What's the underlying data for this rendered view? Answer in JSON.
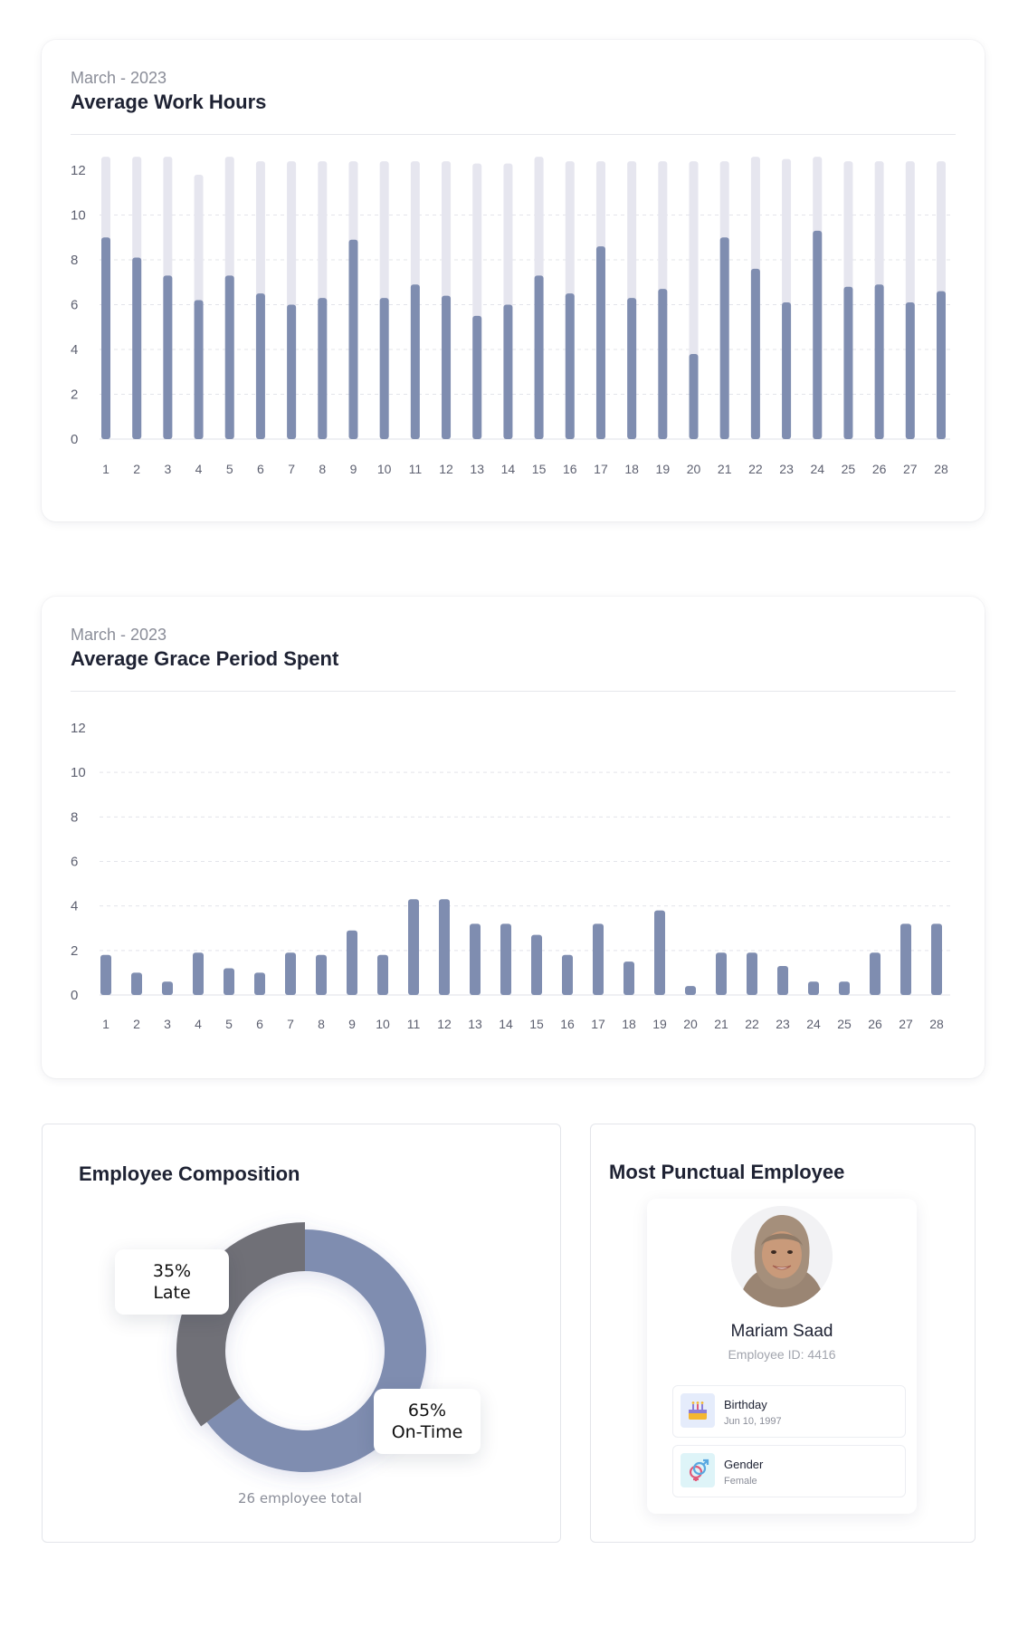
{
  "work_hours_card": {
    "subtitle": "March - 2023",
    "title": "Average Work Hours"
  },
  "grace_card": {
    "subtitle": "March - 2023",
    "title": "Average Grace Period Spent"
  },
  "composition": {
    "title": "Employee Composition",
    "late_percent": "35%",
    "late_label": "Late",
    "ontime_percent": "65%",
    "ontime_label": "On-Time",
    "footer": "26 employee total"
  },
  "punctual": {
    "title": "Most Punctual Employee",
    "name": "Mariam Saad",
    "employee_id": "Employee ID: 4416",
    "birthday_label": "Birthday",
    "birthday_value": "Jun 10, 1997",
    "gender_label": "Gender",
    "gender_value": "Female"
  },
  "colors": {
    "bar": "#7f8db0",
    "bar_track": "#e6e6ef",
    "late": "#6f7077",
    "ontime": "#7f8db0"
  },
  "chart_data": [
    {
      "type": "bar",
      "title": "Average Work Hours",
      "ylim": [
        0,
        12
      ],
      "yticks": [
        0,
        2,
        4,
        6,
        8,
        10,
        12
      ],
      "grid": "dashed horizontal",
      "categories": [
        "1",
        "2",
        "3",
        "4",
        "5",
        "6",
        "7",
        "8",
        "9",
        "10",
        "11",
        "12",
        "13",
        "14",
        "15",
        "16",
        "17",
        "18",
        "19",
        "20",
        "21",
        "22",
        "23",
        "24",
        "25",
        "26",
        "27",
        "28"
      ],
      "values": [
        9.0,
        8.1,
        7.3,
        6.2,
        7.3,
        6.5,
        6.0,
        6.3,
        8.9,
        6.3,
        6.9,
        6.4,
        5.5,
        6.0,
        7.3,
        6.5,
        8.6,
        6.3,
        6.7,
        3.8,
        9.0,
        7.6,
        6.1,
        9.3,
        6.8,
        6.9,
        6.1,
        6.6
      ],
      "track_max": [
        12.6,
        12.6,
        12.6,
        11.8,
        12.6,
        12.4,
        12.4,
        12.4,
        12.4,
        12.4,
        12.4,
        12.4,
        12.3,
        12.3,
        12.6,
        12.4,
        12.4,
        12.4,
        12.4,
        12.4,
        12.4,
        12.6,
        12.5,
        12.6,
        12.4,
        12.4,
        12.4,
        12.4
      ]
    },
    {
      "type": "bar",
      "title": "Average Grace Period Spent",
      "ylim": [
        0,
        12
      ],
      "yticks": [
        0,
        2,
        4,
        6,
        8,
        10,
        12
      ],
      "grid": "dashed horizontal",
      "categories": [
        "1",
        "2",
        "3",
        "4",
        "5",
        "6",
        "7",
        "8",
        "9",
        "10",
        "11",
        "12",
        "13",
        "14",
        "15",
        "16",
        "17",
        "18",
        "19",
        "20",
        "21",
        "22",
        "23",
        "24",
        "25",
        "26",
        "27",
        "28"
      ],
      "values": [
        1.8,
        1.0,
        0.6,
        1.9,
        1.2,
        1.0,
        1.9,
        1.8,
        2.9,
        1.8,
        4.3,
        4.3,
        3.2,
        3.2,
        2.7,
        1.8,
        3.2,
        1.5,
        3.8,
        0.4,
        1.9,
        1.9,
        1.3,
        0.6,
        0.6,
        1.9,
        3.2,
        3.2
      ]
    },
    {
      "type": "pie",
      "title": "Employee Composition",
      "labels": [
        "Late",
        "On-Time"
      ],
      "values": [
        35,
        65
      ],
      "total_employees": 26
    }
  ]
}
